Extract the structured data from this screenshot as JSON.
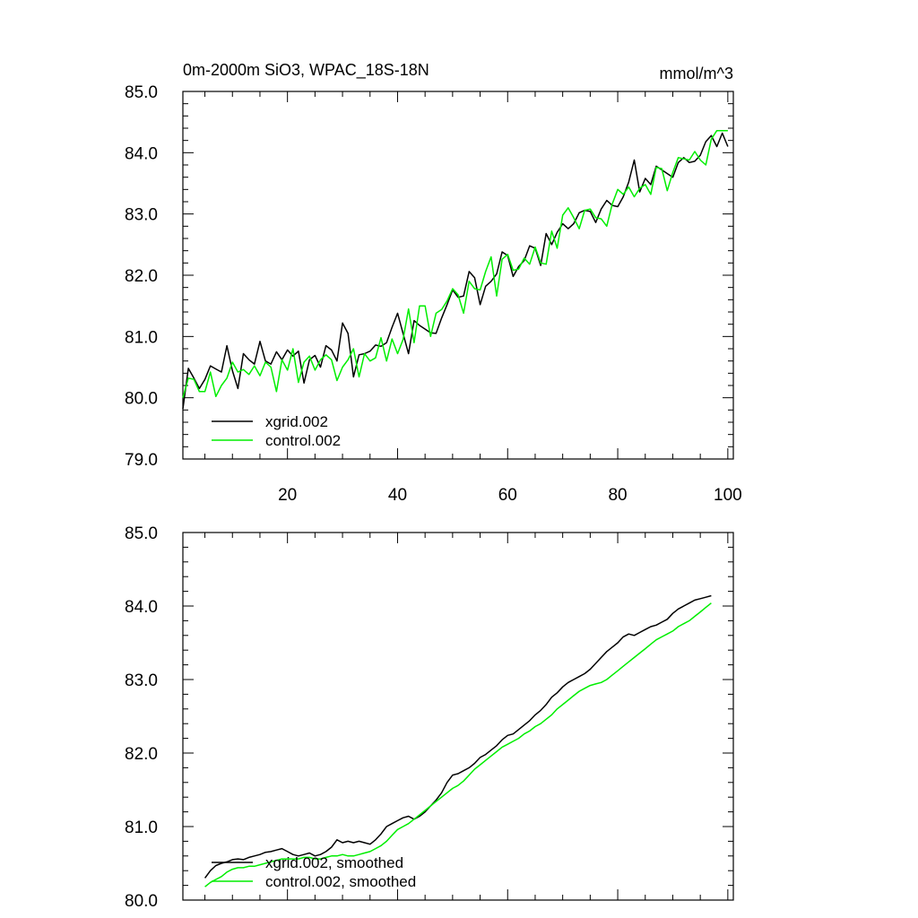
{
  "chart_data": [
    {
      "type": "line",
      "title": "0m-2000m SiO3, WPAC_18S-18N",
      "units_label": "mmol/m^3",
      "xlabel": "",
      "ylabel": "",
      "xlim": [
        1,
        101
      ],
      "ylim": [
        79.0,
        85.0
      ],
      "x_ticks": [
        20,
        40,
        60,
        80,
        100
      ],
      "x_tick_labels": [
        "20",
        "40",
        "60",
        "80",
        "100"
      ],
      "y_ticks": [
        79.0,
        80.0,
        81.0,
        82.0,
        83.0,
        84.0,
        85.0
      ],
      "y_tick_labels": [
        "79.0",
        "80.0",
        "81.0",
        "82.0",
        "83.0",
        "84.0",
        "85.0"
      ],
      "legend_position": "bottom-left",
      "x": [
        1,
        2,
        3,
        4,
        5,
        6,
        7,
        8,
        9,
        10,
        11,
        12,
        13,
        14,
        15,
        16,
        17,
        18,
        19,
        20,
        21,
        22,
        23,
        24,
        25,
        26,
        27,
        28,
        29,
        30,
        31,
        32,
        33,
        34,
        35,
        36,
        37,
        38,
        39,
        40,
        41,
        42,
        43,
        44,
        45,
        46,
        47,
        48,
        49,
        50,
        51,
        52,
        53,
        54,
        55,
        56,
        57,
        58,
        59,
        60,
        61,
        62,
        63,
        64,
        65,
        66,
        67,
        68,
        69,
        70,
        71,
        72,
        73,
        74,
        75,
        76,
        77,
        78,
        79,
        80,
        81,
        82,
        83,
        84,
        85,
        86,
        87,
        88,
        89,
        90,
        91,
        92,
        93,
        94,
        95,
        96,
        97,
        98,
        99,
        100
      ],
      "series": [
        {
          "name": "xgrid.002",
          "color": "#000000",
          "values": [
            79.82,
            80.48,
            80.32,
            80.15,
            80.3,
            80.52,
            80.47,
            80.42,
            80.85,
            80.44,
            80.15,
            80.72,
            80.62,
            80.55,
            80.92,
            80.6,
            80.55,
            80.75,
            80.62,
            80.78,
            80.68,
            80.76,
            80.24,
            80.62,
            80.69,
            80.5,
            80.85,
            80.78,
            80.6,
            81.22,
            81.05,
            80.34,
            80.7,
            80.72,
            80.76,
            80.86,
            80.84,
            80.9,
            81.15,
            81.38,
            81.05,
            80.72,
            81.26,
            81.18,
            81.12,
            81.06,
            81.05,
            81.3,
            81.52,
            81.76,
            81.64,
            81.66,
            82.06,
            81.96,
            81.52,
            81.82,
            81.9,
            82.02,
            82.38,
            82.32,
            81.98,
            82.14,
            82.24,
            82.48,
            82.44,
            82.16,
            82.68,
            82.5,
            82.7,
            82.84,
            82.76,
            82.84,
            83.02,
            83.06,
            83.04,
            82.86,
            83.08,
            83.22,
            83.14,
            83.12,
            83.28,
            83.52,
            83.88,
            83.36,
            83.58,
            83.48,
            83.78,
            83.72,
            83.66,
            83.6,
            83.84,
            83.92,
            83.84,
            83.86,
            83.96,
            84.18,
            84.28,
            84.1,
            84.32,
            84.1
          ]
        },
        {
          "name": "control.002",
          "color": "#00ee00",
          "values": [
            80.0,
            80.32,
            80.3,
            80.1,
            80.1,
            80.42,
            80.02,
            80.2,
            80.32,
            80.58,
            80.42,
            80.46,
            80.38,
            80.52,
            80.36,
            80.58,
            80.5,
            80.1,
            80.62,
            80.45,
            80.8,
            80.25,
            80.58,
            80.68,
            80.45,
            80.62,
            80.7,
            80.62,
            80.28,
            80.5,
            80.62,
            80.8,
            80.34,
            80.72,
            80.6,
            80.65,
            80.98,
            80.6,
            80.96,
            80.72,
            80.95,
            81.45,
            80.9,
            81.5,
            81.5,
            81.0,
            81.38,
            81.44,
            81.58,
            81.78,
            81.68,
            81.38,
            81.9,
            81.78,
            81.76,
            82.06,
            82.3,
            81.66,
            82.26,
            82.34,
            82.08,
            82.1,
            82.28,
            82.18,
            82.46,
            82.2,
            82.18,
            82.72,
            82.44,
            82.98,
            83.1,
            82.94,
            82.76,
            83.06,
            83.08,
            82.94,
            82.92,
            82.8,
            83.16,
            83.4,
            83.32,
            83.44,
            83.28,
            83.42,
            83.48,
            83.32,
            83.76,
            83.74,
            83.38,
            83.68,
            83.92,
            83.9,
            83.88,
            84.02,
            83.88,
            83.8,
            84.22,
            84.36,
            84.36,
            84.36
          ]
        }
      ]
    },
    {
      "type": "line",
      "title": "",
      "xlabel": "",
      "ylabel": "",
      "xlim": [
        1,
        101
      ],
      "ylim": [
        80.0,
        85.0
      ],
      "x_ticks": [
        20,
        40,
        60,
        80,
        100
      ],
      "y_ticks": [
        80.0,
        81.0,
        82.0,
        83.0,
        84.0,
        85.0
      ],
      "y_tick_labels": [
        "80.0",
        "81.0",
        "82.0",
        "83.0",
        "84.0",
        "85.0"
      ],
      "legend_position": "bottom-left",
      "x": [
        5,
        6,
        7,
        8,
        9,
        10,
        11,
        12,
        13,
        14,
        15,
        16,
        17,
        18,
        19,
        20,
        21,
        22,
        23,
        24,
        25,
        26,
        27,
        28,
        29,
        30,
        31,
        32,
        33,
        34,
        35,
        36,
        37,
        38,
        39,
        40,
        41,
        42,
        43,
        44,
        45,
        46,
        47,
        48,
        49,
        50,
        51,
        52,
        53,
        54,
        55,
        56,
        57,
        58,
        59,
        60,
        61,
        62,
        63,
        64,
        65,
        66,
        67,
        68,
        69,
        70,
        71,
        72,
        73,
        74,
        75,
        76,
        77,
        78,
        79,
        80,
        81,
        82,
        83,
        84,
        85,
        86,
        87,
        88,
        89,
        90,
        91,
        92,
        93,
        94,
        95,
        96,
        97
      ],
      "series": [
        {
          "name": "xgrid.002, smoothed",
          "color": "#000000",
          "values": [
            80.3,
            80.4,
            80.47,
            80.5,
            80.52,
            80.55,
            80.56,
            80.55,
            80.58,
            80.6,
            80.62,
            80.65,
            80.66,
            80.68,
            80.7,
            80.66,
            80.62,
            80.6,
            80.62,
            80.64,
            80.6,
            80.62,
            80.66,
            80.72,
            80.82,
            80.78,
            80.8,
            80.78,
            80.8,
            80.78,
            80.76,
            80.82,
            80.9,
            81.0,
            81.04,
            81.08,
            81.12,
            81.14,
            81.1,
            81.14,
            81.2,
            81.28,
            81.36,
            81.46,
            81.6,
            81.7,
            81.72,
            81.76,
            81.8,
            81.86,
            81.94,
            81.98,
            82.04,
            82.1,
            82.18,
            82.24,
            82.26,
            82.32,
            82.38,
            82.44,
            82.52,
            82.58,
            82.66,
            82.76,
            82.82,
            82.9,
            82.96,
            83.0,
            83.04,
            83.08,
            83.14,
            83.22,
            83.3,
            83.38,
            83.44,
            83.5,
            83.58,
            83.62,
            83.6,
            83.64,
            83.68,
            83.72,
            83.74,
            83.78,
            83.82,
            83.9,
            83.96,
            84.0,
            84.04,
            84.08,
            84.1,
            84.12,
            84.14
          ]
        },
        {
          "name": "control.002, smoothed",
          "color": "#00ee00",
          "values": [
            80.18,
            80.24,
            80.28,
            80.32,
            80.38,
            80.42,
            80.44,
            80.44,
            80.46,
            80.46,
            80.48,
            80.5,
            80.52,
            80.54,
            80.56,
            80.56,
            80.56,
            80.56,
            80.58,
            80.58,
            80.56,
            80.56,
            80.58,
            80.6,
            80.6,
            80.62,
            80.6,
            80.6,
            80.62,
            80.64,
            80.66,
            80.7,
            80.74,
            80.8,
            80.88,
            80.96,
            81.0,
            81.04,
            81.1,
            81.16,
            81.22,
            81.28,
            81.34,
            81.4,
            81.46,
            81.52,
            81.56,
            81.62,
            81.7,
            81.78,
            81.84,
            81.9,
            81.96,
            82.02,
            82.08,
            82.12,
            82.16,
            82.2,
            82.26,
            82.3,
            82.36,
            82.4,
            82.46,
            82.52,
            82.6,
            82.66,
            82.72,
            82.78,
            82.84,
            82.88,
            82.92,
            82.94,
            82.96,
            83.0,
            83.06,
            83.12,
            83.18,
            83.24,
            83.3,
            83.36,
            83.42,
            83.48,
            83.54,
            83.58,
            83.62,
            83.66,
            83.72,
            83.76,
            83.8,
            83.86,
            83.92,
            83.98,
            84.04
          ]
        }
      ]
    }
  ]
}
